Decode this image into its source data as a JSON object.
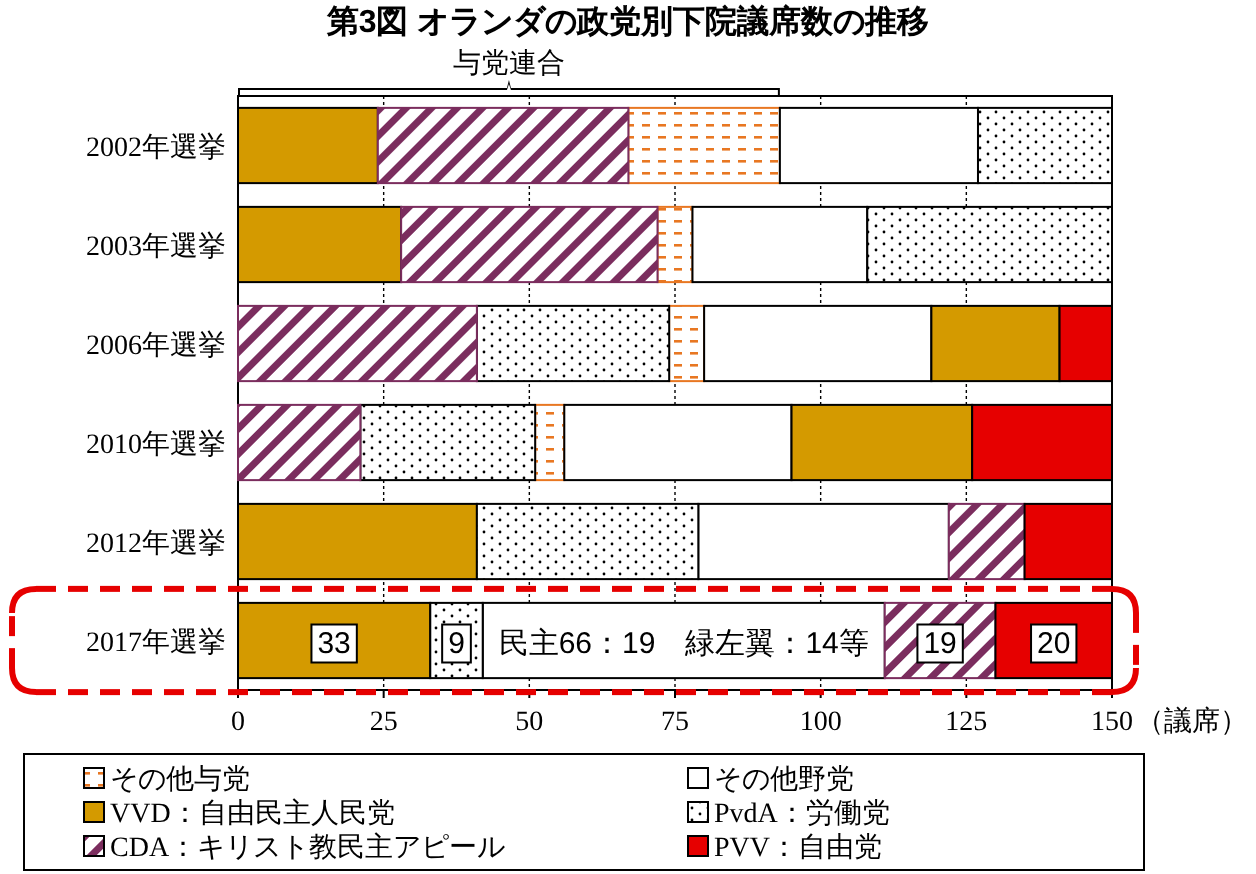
{
  "chart_data": {
    "type": "bar",
    "orientation": "horizontal",
    "title": "第3図 オランダの政党別下院議席数の推移",
    "categories": [
      "2002年選挙",
      "2003年選挙",
      "2006年選挙",
      "2010年選挙",
      "2012年選挙",
      "2017年選挙"
    ],
    "series": [
      {
        "name": "その他与党",
        "color": "#e87722",
        "base": [
          67,
          72,
          74,
          51,
          null,
          null
        ],
        "values": [
          26,
          6,
          6,
          5,
          null,
          null
        ]
      },
      {
        "name": "その他野党",
        "color": "#ffffff",
        "base": [
          93,
          78,
          80,
          56,
          79,
          42
        ],
        "values": [
          34,
          30,
          39,
          39,
          43,
          69
        ],
        "value_labels": [
          null,
          null,
          null,
          null,
          null,
          "民主66：19　緑左翼：14等"
        ]
      },
      {
        "name": "VVD：自由民主人民党",
        "color": "#d49a00",
        "base": [
          0,
          0,
          119,
          95,
          0,
          0
        ],
        "values": [
          24,
          28,
          22,
          31,
          41,
          33
        ],
        "value_labels": [
          null,
          null,
          null,
          null,
          null,
          "33"
        ]
      },
      {
        "name": "PvdA：労働党",
        "color": "#000000",
        "base": [
          127,
          108,
          41,
          21,
          41,
          33
        ],
        "values": [
          23,
          42,
          33,
          30,
          38,
          9
        ],
        "value_labels": [
          null,
          null,
          null,
          null,
          null,
          "9"
        ]
      },
      {
        "name": "CDA：キリスト教民主アピール",
        "color": "#7b2d5e",
        "base": [
          24,
          28,
          0,
          0,
          122,
          111
        ],
        "values": [
          43,
          44,
          41,
          21,
          13,
          19
        ],
        "value_labels": [
          null,
          null,
          null,
          null,
          null,
          "19"
        ]
      },
      {
        "name": "PVV：自由党",
        "color": "#e60000",
        "base": [
          null,
          null,
          141,
          126,
          135,
          130
        ],
        "values": [
          null,
          null,
          9,
          24,
          15,
          20
        ],
        "value_labels": [
          null,
          null,
          null,
          null,
          null,
          "20"
        ]
      }
    ],
    "xlim": [
      0,
      150
    ],
    "xticks": [
      0,
      25,
      50,
      75,
      100,
      125,
      150
    ],
    "xlabel": "（議席）",
    "annotations": [
      "与党連合"
    ],
    "grid": "x",
    "legend": "bottom"
  }
}
